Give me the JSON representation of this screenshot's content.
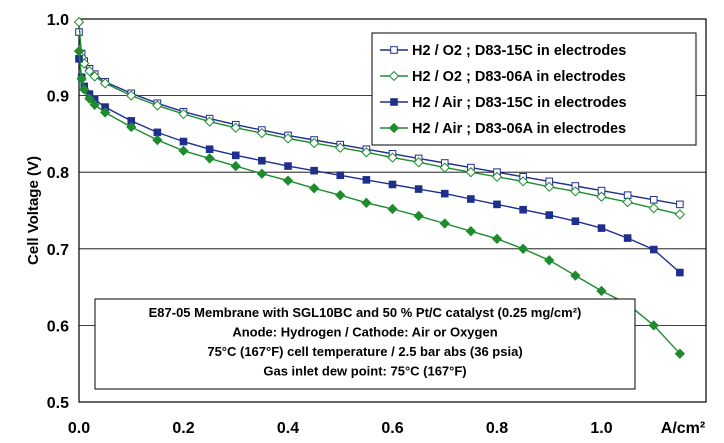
{
  "chart_data": {
    "type": "line",
    "title": "",
    "xlabel": "A/cm²",
    "ylabel": "Cell Voltage (V)",
    "xlim": [
      0,
      1.2
    ],
    "ylim": [
      0.5,
      1.0
    ],
    "x_ticks": [
      "0.0",
      "0.2",
      "0.4",
      "0.6",
      "0.8",
      "1.0"
    ],
    "y_ticks": [
      "0.5",
      "0.6",
      "0.7",
      "0.8",
      "0.9",
      "1.0"
    ],
    "grid": "horizontal",
    "legend_position": "top-right",
    "series": [
      {
        "name": "H2 / O2 ; D83-15C in electrodes",
        "color": "#1f2f8c",
        "marker": "open-square",
        "x": [
          0.0,
          0.005,
          0.01,
          0.02,
          0.03,
          0.05,
          0.1,
          0.15,
          0.2,
          0.25,
          0.3,
          0.35,
          0.4,
          0.45,
          0.5,
          0.55,
          0.6,
          0.65,
          0.7,
          0.75,
          0.8,
          0.85,
          0.9,
          0.95,
          1.0,
          1.05,
          1.1,
          1.15
        ],
        "y": [
          0.983,
          0.955,
          0.945,
          0.935,
          0.928,
          0.918,
          0.903,
          0.89,
          0.879,
          0.87,
          0.862,
          0.855,
          0.848,
          0.842,
          0.836,
          0.83,
          0.824,
          0.818,
          0.812,
          0.806,
          0.8,
          0.794,
          0.788,
          0.782,
          0.776,
          0.77,
          0.764,
          0.758
        ]
      },
      {
        "name": "H2 / O2 ; D83-06A in electrodes",
        "color": "#1e8c2e",
        "marker": "open-diamond",
        "x": [
          0.0,
          0.005,
          0.01,
          0.02,
          0.03,
          0.05,
          0.1,
          0.15,
          0.2,
          0.25,
          0.3,
          0.35,
          0.4,
          0.45,
          0.5,
          0.55,
          0.6,
          0.65,
          0.7,
          0.75,
          0.8,
          0.85,
          0.9,
          0.95,
          1.0,
          1.05,
          1.1,
          1.15
        ],
        "y": [
          0.996,
          0.95,
          0.942,
          0.932,
          0.925,
          0.916,
          0.9,
          0.887,
          0.876,
          0.866,
          0.858,
          0.851,
          0.844,
          0.838,
          0.832,
          0.826,
          0.819,
          0.813,
          0.806,
          0.8,
          0.794,
          0.788,
          0.781,
          0.775,
          0.768,
          0.761,
          0.753,
          0.745
        ]
      },
      {
        "name": "H2 / Air ; D83-15C in electrodes",
        "color": "#1f2f8c",
        "marker": "filled-square",
        "x": [
          0.0,
          0.005,
          0.01,
          0.02,
          0.03,
          0.05,
          0.1,
          0.15,
          0.2,
          0.25,
          0.3,
          0.35,
          0.4,
          0.45,
          0.5,
          0.55,
          0.6,
          0.65,
          0.7,
          0.75,
          0.8,
          0.85,
          0.9,
          0.95,
          1.0,
          1.05,
          1.1,
          1.15
        ],
        "y": [
          0.948,
          0.924,
          0.912,
          0.902,
          0.895,
          0.885,
          0.867,
          0.852,
          0.84,
          0.83,
          0.822,
          0.815,
          0.808,
          0.802,
          0.796,
          0.79,
          0.784,
          0.778,
          0.772,
          0.765,
          0.758,
          0.751,
          0.744,
          0.736,
          0.727,
          0.714,
          0.699,
          0.669
        ]
      },
      {
        "name": "H2 / Air ; D83-06A in electrodes",
        "color": "#1e8c2e",
        "marker": "filled-diamond",
        "x": [
          0.0,
          0.005,
          0.01,
          0.02,
          0.03,
          0.05,
          0.1,
          0.15,
          0.2,
          0.25,
          0.3,
          0.35,
          0.4,
          0.45,
          0.5,
          0.55,
          0.6,
          0.65,
          0.7,
          0.75,
          0.8,
          0.85,
          0.9,
          0.95,
          1.0,
          1.05,
          1.1,
          1.15
        ],
        "y": [
          0.958,
          0.922,
          0.908,
          0.896,
          0.888,
          0.878,
          0.859,
          0.842,
          0.828,
          0.818,
          0.808,
          0.798,
          0.789,
          0.779,
          0.77,
          0.76,
          0.752,
          0.743,
          0.733,
          0.723,
          0.713,
          0.7,
          0.685,
          0.665,
          0.645,
          0.628,
          0.6,
          0.563
        ]
      }
    ],
    "annotation": {
      "lines": [
        "E87-05 Membrane with SGL10BC and 50 % Pt/C catalyst (0.25 mg/cm²)",
        "Anode: Hydrogen / Cathode: Air or Oxygen",
        "75°C (167°F) cell temperature / 2.5 bar abs (36 psia)",
        "Gas inlet dew point: 75°C (167°F)"
      ]
    }
  }
}
